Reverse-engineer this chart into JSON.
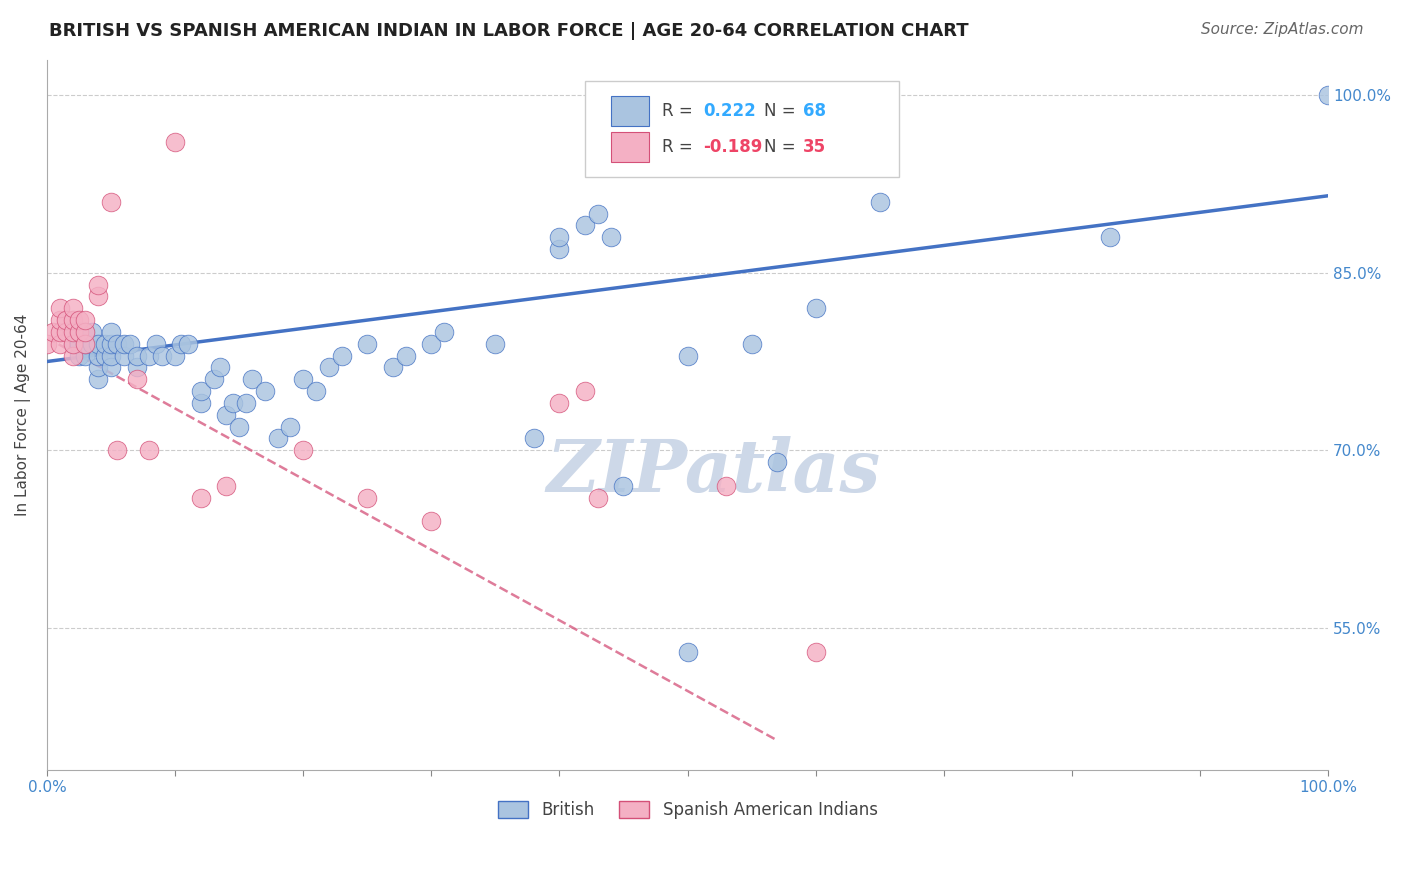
{
  "title": "BRITISH VS SPANISH AMERICAN INDIAN IN LABOR FORCE | AGE 20-64 CORRELATION CHART",
  "source": "Source: ZipAtlas.com",
  "ylabel": "In Labor Force | Age 20-64",
  "xlim": [
    0.0,
    1.0
  ],
  "ylim": [
    0.43,
    1.03
  ],
  "xticks": [
    0.0,
    0.1,
    0.2,
    0.3,
    0.4,
    0.5,
    0.6,
    0.7,
    0.8,
    0.9,
    1.0
  ],
  "xticklabels": [
    "0.0%",
    "",
    "",
    "",
    "",
    "",
    "",
    "",
    "",
    "",
    "100.0%"
  ],
  "ytick_positions": [
    0.55,
    0.7,
    0.85,
    1.0
  ],
  "ytick_labels": [
    "55.0%",
    "70.0%",
    "85.0%",
    "100.0%"
  ],
  "grid_color": "#cccccc",
  "background_color": "#ffffff",
  "british_r": 0.222,
  "british_n": 68,
  "spanish_r": -0.189,
  "spanish_n": 35,
  "british_color": "#aac4e0",
  "british_line_color": "#4472c4",
  "spanish_color": "#f4b0c4",
  "spanish_line_color": "#d45078",
  "legend_r_color": "#33aaff",
  "legend_n_color": "#ff5555",
  "british_x": [
    0.02,
    0.02,
    0.025,
    0.025,
    0.03,
    0.03,
    0.03,
    0.035,
    0.035,
    0.04,
    0.04,
    0.04,
    0.04,
    0.045,
    0.045,
    0.05,
    0.05,
    0.05,
    0.05,
    0.055,
    0.06,
    0.06,
    0.065,
    0.07,
    0.07,
    0.08,
    0.085,
    0.09,
    0.1,
    0.105,
    0.11,
    0.12,
    0.12,
    0.13,
    0.135,
    0.14,
    0.145,
    0.15,
    0.155,
    0.16,
    0.17,
    0.18,
    0.19,
    0.2,
    0.21,
    0.22,
    0.23,
    0.25,
    0.27,
    0.28,
    0.3,
    0.31,
    0.35,
    0.38,
    0.4,
    0.4,
    0.42,
    0.43,
    0.44,
    0.45,
    0.5,
    0.5,
    0.55,
    0.57,
    0.6,
    0.65,
    0.83,
    1.0
  ],
  "british_y": [
    0.79,
    0.8,
    0.78,
    0.79,
    0.78,
    0.79,
    0.8,
    0.79,
    0.8,
    0.76,
    0.77,
    0.78,
    0.79,
    0.78,
    0.79,
    0.77,
    0.78,
    0.79,
    0.8,
    0.79,
    0.78,
    0.79,
    0.79,
    0.77,
    0.78,
    0.78,
    0.79,
    0.78,
    0.78,
    0.79,
    0.79,
    0.74,
    0.75,
    0.76,
    0.77,
    0.73,
    0.74,
    0.72,
    0.74,
    0.76,
    0.75,
    0.71,
    0.72,
    0.76,
    0.75,
    0.77,
    0.78,
    0.79,
    0.77,
    0.78,
    0.79,
    0.8,
    0.79,
    0.71,
    0.87,
    0.88,
    0.89,
    0.9,
    0.88,
    0.67,
    0.78,
    0.53,
    0.79,
    0.69,
    0.82,
    0.91,
    0.88,
    1.0
  ],
  "spanish_x": [
    0.0,
    0.005,
    0.01,
    0.01,
    0.01,
    0.01,
    0.015,
    0.015,
    0.02,
    0.02,
    0.02,
    0.02,
    0.02,
    0.025,
    0.025,
    0.03,
    0.03,
    0.03,
    0.04,
    0.04,
    0.05,
    0.055,
    0.07,
    0.08,
    0.1,
    0.12,
    0.14,
    0.2,
    0.25,
    0.3,
    0.4,
    0.42,
    0.43,
    0.53,
    0.6
  ],
  "spanish_y": [
    0.79,
    0.8,
    0.79,
    0.8,
    0.81,
    0.82,
    0.8,
    0.81,
    0.78,
    0.79,
    0.8,
    0.81,
    0.82,
    0.8,
    0.81,
    0.79,
    0.8,
    0.81,
    0.83,
    0.84,
    0.91,
    0.7,
    0.76,
    0.7,
    0.96,
    0.66,
    0.67,
    0.7,
    0.66,
    0.64,
    0.74,
    0.75,
    0.66,
    0.67,
    0.53
  ],
  "british_trend_x": [
    0.0,
    1.0
  ],
  "british_trend_y": [
    0.775,
    0.915
  ],
  "spanish_trend_x": [
    0.0,
    0.57
  ],
  "spanish_trend_y": [
    0.795,
    0.455
  ],
  "watermark": "ZIPatlas",
  "watermark_color": "#cdd8e8",
  "title_fontsize": 13,
  "source_fontsize": 11,
  "axis_label_fontsize": 11,
  "tick_fontsize": 11,
  "legend_fontsize": 12,
  "watermark_fontsize": 52
}
